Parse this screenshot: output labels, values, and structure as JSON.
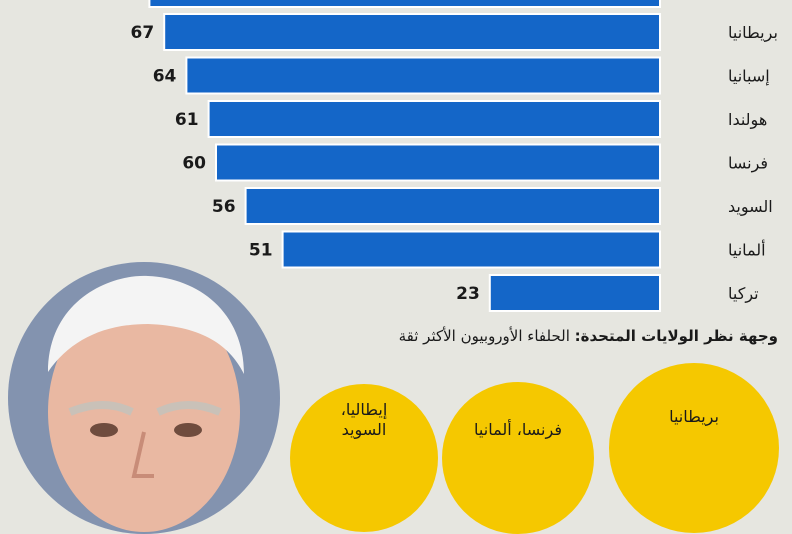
{
  "chart_data": {
    "type": "bar",
    "orientation": "horizontal",
    "categories": [
      "بريطانيا",
      "إسبانيا",
      "هولندا",
      "فرنسا",
      "السويد",
      "ألمانيا",
      "تركيا"
    ],
    "values": [
      67,
      64,
      61,
      60,
      56,
      51,
      23
    ],
    "xlim": [
      0,
      100
    ],
    "bar_color": "#1466c8"
  },
  "subtitle": {
    "bold": "وجهة نظر الولايات المتحدة:",
    "rest": " الحلفاء الأوروبيون الأكثر ثقة"
  },
  "circles": [
    {
      "line1": "بريطانيا",
      "line2": ""
    },
    {
      "line1": "فرنسا، ألمانيا",
      "line2": ""
    },
    {
      "line1": "إيطاليا،",
      "line2": "السويد"
    }
  ],
  "colors": {
    "background": "#e6e6e0",
    "circle": "#f5c800"
  }
}
